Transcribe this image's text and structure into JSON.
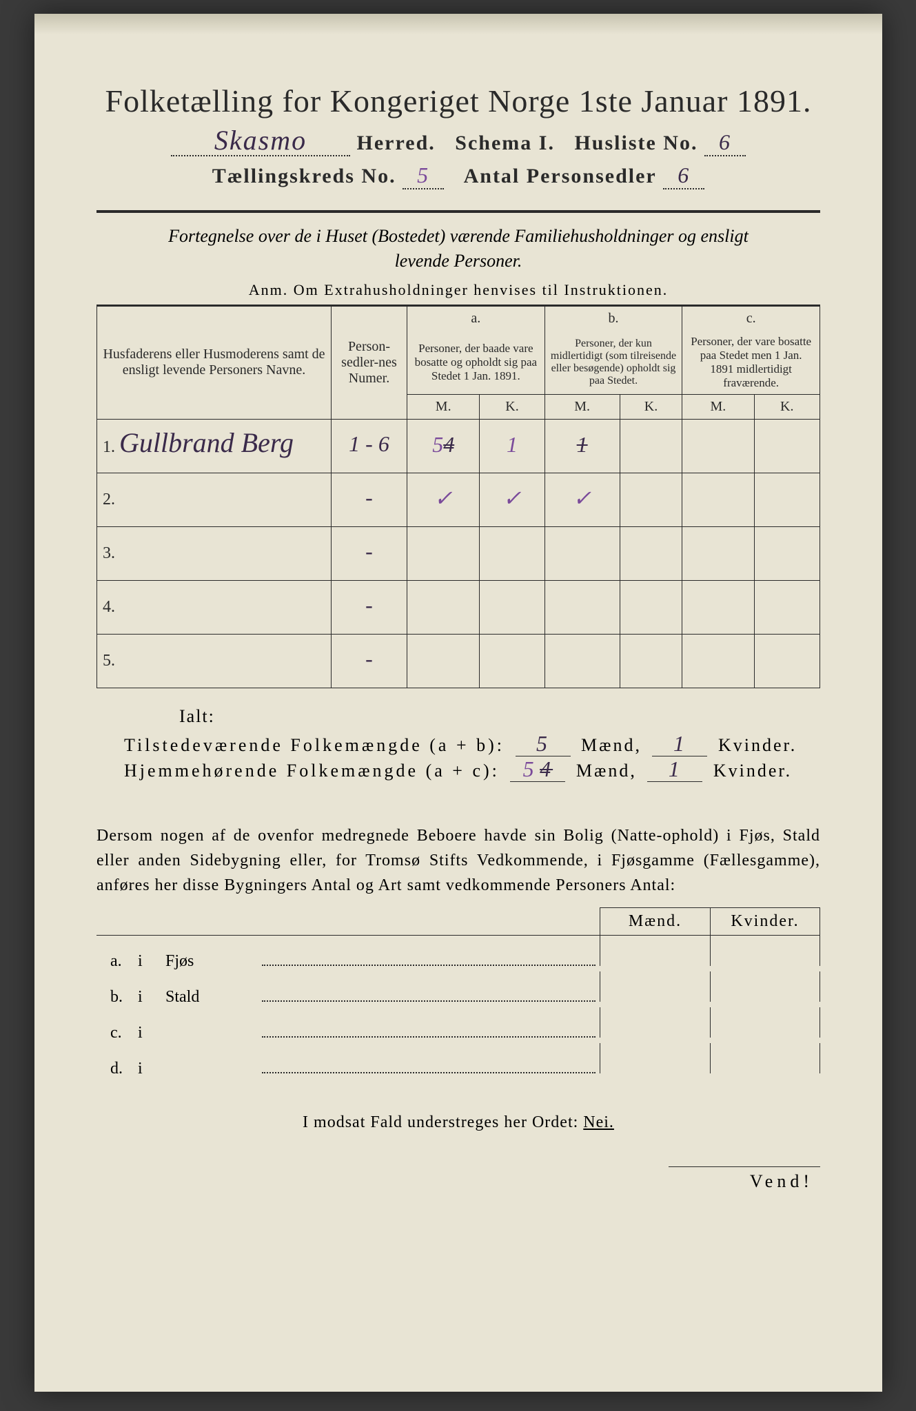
{
  "colors": {
    "paper": "#e8e4d4",
    "ink": "#2a2a2a",
    "handwriting": "#3a2a4a",
    "handwriting_purple": "#7a4a9a",
    "background": "#3a3a3a"
  },
  "typography": {
    "title_fontsize_pt": 34,
    "body_fontsize_pt": 18,
    "header_fontsize_pt": 15,
    "handwriting_fontsize_pt": 30
  },
  "header": {
    "title": "Folketælling for Kongeriget Norge 1ste Januar 1891.",
    "herred_hw": "Skasmo",
    "herred_label": "Herred.",
    "schema_label": "Schema I.",
    "husliste_label": "Husliste No.",
    "husliste_hw": "6",
    "kreds_label": "Tællingskreds No.",
    "kreds_hw": "5",
    "antal_label": "Antal Personsedler",
    "antal_hw": "6"
  },
  "fortegnelse": {
    "line1": "Fortegnelse over de i Huset (Bostedet) værende Familiehusholdninger og ensligt",
    "line2": "levende Personer.",
    "anm": "Anm.   Om Extrahusholdninger henvises til Instruktionen."
  },
  "table": {
    "col_names": "Husfaderens eller Husmoderens samt de ensligt levende Personers Navne.",
    "col_numer": "Person-sedler-nes Numer.",
    "col_a_label": "a.",
    "col_a": "Personer, der baade vare bosatte og opholdt sig paa Stedet 1 Jan. 1891.",
    "col_b_label": "b.",
    "col_b": "Personer, der kun midlertidigt (som tilreisende eller besøgende) opholdt sig paa Stedet.",
    "col_c_label": "c.",
    "col_c": "Personer, der vare bosatte paa Stedet men 1 Jan. 1891 midlertidigt fraværende.",
    "mk_m": "M.",
    "mk_k": "K.",
    "rows": [
      {
        "n": "1.",
        "name_hw": "Gullbrand Berg",
        "numer_hw": "1 - 6",
        "a_m_hw": "5",
        "a_m_strike": "4",
        "a_k_hw": "1",
        "b_m_hw": "",
        "b_m_strike": "1",
        "b_k_hw": "",
        "c_m_hw": "",
        "c_k_hw": ""
      },
      {
        "n": "2.",
        "name_hw": "",
        "numer_hw": "-",
        "a_m_hw": "✓",
        "a_m_strike": "",
        "a_k_hw": "✓",
        "b_m_hw": "✓",
        "b_m_strike": "",
        "b_k_hw": "",
        "c_m_hw": "",
        "c_k_hw": ""
      },
      {
        "n": "3.",
        "name_hw": "",
        "numer_hw": "-",
        "a_m_hw": "",
        "a_m_strike": "",
        "a_k_hw": "",
        "b_m_hw": "",
        "b_m_strike": "",
        "b_k_hw": "",
        "c_m_hw": "",
        "c_k_hw": ""
      },
      {
        "n": "4.",
        "name_hw": "",
        "numer_hw": "-",
        "a_m_hw": "",
        "a_m_strike": "",
        "a_k_hw": "",
        "b_m_hw": "",
        "b_m_strike": "",
        "b_k_hw": "",
        "c_m_hw": "",
        "c_k_hw": ""
      },
      {
        "n": "5.",
        "name_hw": "",
        "numer_hw": "-",
        "a_m_hw": "",
        "a_m_strike": "",
        "a_k_hw": "",
        "b_m_hw": "",
        "b_m_strike": "",
        "b_k_hw": "",
        "c_m_hw": "",
        "c_k_hw": ""
      }
    ]
  },
  "totals": {
    "ialt": "Ialt:",
    "line1_label": "Tilstedeværende Folkemængde (a + b):",
    "line1_m_hw": "5",
    "line1_maend": "Mænd,",
    "line1_k_hw": "1",
    "line1_kvinder": "Kvinder.",
    "line2_label": "Hjemmehørende Folkemængde (a + c):",
    "line2_m_hw": "5",
    "line2_m_strike": "4",
    "line2_k_hw": "1"
  },
  "buildings": {
    "para": "Dersom nogen af de ovenfor medregnede Beboere havde sin Bolig (Natte-ophold) i Fjøs, Stald eller anden Sidebygning eller, for Tromsø Stifts Vedkommende, i Fjøsgamme (Fællesgamme), anføres her disse Bygningers Antal og Art samt vedkommende Personers Antal:",
    "maend": "Mænd.",
    "kvinder": "Kvinder.",
    "rows": [
      {
        "k": "a.",
        "i": "i",
        "label": "Fjøs"
      },
      {
        "k": "b.",
        "i": "i",
        "label": "Stald"
      },
      {
        "k": "c.",
        "i": "i",
        "label": ""
      },
      {
        "k": "d.",
        "i": "i",
        "label": ""
      }
    ]
  },
  "footer": {
    "nei_line": "I modsat Fald understreges her Ordet:",
    "nei": "Nei.",
    "vend": "Vend!"
  }
}
